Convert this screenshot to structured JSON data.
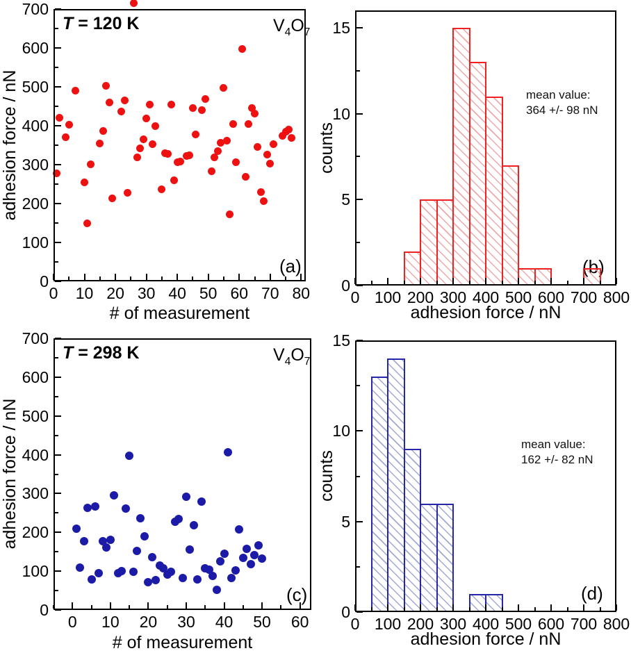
{
  "panels": {
    "a": {
      "letter": "(a)",
      "title_italic": "T",
      "title_rest": " = 120 K",
      "formula": [
        "V",
        "4",
        "O",
        "7"
      ],
      "xlabel": "# of measurement",
      "ylabel": "adhesion force / nN"
    },
    "b": {
      "letter": "(b)",
      "xlabel": "adhesion force / nN",
      "ylabel": "counts",
      "annotation_line1": "mean value:",
      "annotation_line2": "364 +/- 98 nN"
    },
    "c": {
      "letter": "(c)",
      "title_italic": "T",
      "title_rest": " = 298 K",
      "formula": [
        "V",
        "4",
        "O",
        "7"
      ],
      "xlabel": "# of measurement",
      "ylabel": "adhesion force / nN"
    },
    "d": {
      "letter": "(d)",
      "xlabel": "adhesion force / nN",
      "ylabel": "counts",
      "annotation_line1": "mean value:",
      "annotation_line2": "162 +/- 82 nN"
    }
  },
  "chart_data": [
    {
      "panel": "a",
      "type": "scatter",
      "title": "T = 120 K",
      "material": "V4O7",
      "xlabel": "# of measurement",
      "ylabel": "adhesion force / nN",
      "xlim": [
        0,
        81.5
      ],
      "ylim": [
        0,
        700
      ],
      "xticks": [
        0,
        10,
        20,
        30,
        40,
        50,
        60,
        70,
        80
      ],
      "x_minor_step": 5,
      "yticks": [
        0,
        100,
        200,
        300,
        400,
        500,
        600,
        700
      ],
      "y_minor_step": 50,
      "color": "#ee1111",
      "marker_size": 11,
      "points": [
        [
          1,
          277
        ],
        [
          2,
          420
        ],
        [
          4,
          370
        ],
        [
          5,
          402
        ],
        [
          7,
          490
        ],
        [
          10,
          255
        ],
        [
          11,
          150
        ],
        [
          12,
          301
        ],
        [
          15,
          355
        ],
        [
          16,
          386
        ],
        [
          17,
          503
        ],
        [
          18,
          460
        ],
        [
          19,
          214
        ],
        [
          22,
          436
        ],
        [
          23,
          466
        ],
        [
          24,
          228
        ],
        [
          26,
          716
        ],
        [
          27,
          318
        ],
        [
          28,
          342
        ],
        [
          29,
          365
        ],
        [
          30,
          418
        ],
        [
          31,
          455
        ],
        [
          32,
          352
        ],
        [
          33,
          400
        ],
        [
          35,
          236
        ],
        [
          36,
          330
        ],
        [
          37,
          328
        ],
        [
          38,
          455
        ],
        [
          39,
          259
        ],
        [
          40,
          307
        ],
        [
          41,
          308
        ],
        [
          43,
          322
        ],
        [
          44,
          325
        ],
        [
          45,
          446
        ],
        [
          46,
          378
        ],
        [
          48,
          440
        ],
        [
          49,
          468
        ],
        [
          51,
          283
        ],
        [
          52,
          318
        ],
        [
          53,
          335
        ],
        [
          54,
          356
        ],
        [
          55,
          498
        ],
        [
          56,
          362
        ],
        [
          57,
          173
        ],
        [
          58,
          405
        ],
        [
          59,
          307
        ],
        [
          61,
          598
        ],
        [
          62,
          268
        ],
        [
          63,
          405
        ],
        [
          64,
          446
        ],
        [
          65,
          432
        ],
        [
          66,
          345
        ],
        [
          67,
          230
        ],
        [
          68,
          207
        ],
        [
          69,
          326
        ],
        [
          70,
          303
        ],
        [
          71,
          352
        ],
        [
          74,
          375
        ],
        [
          75,
          385
        ],
        [
          76,
          390
        ],
        [
          77,
          368
        ]
      ]
    },
    {
      "panel": "b",
      "type": "histogram",
      "xlabel": "adhesion force / nN",
      "ylabel": "counts",
      "annotation": "mean value: 364 +/- 98 nN",
      "xlim": [
        0,
        800
      ],
      "ylim": [
        0,
        16
      ],
      "xticks": [
        0,
        100,
        200,
        300,
        400,
        500,
        600,
        700,
        800
      ],
      "x_minor_step": 50,
      "yticks": [
        0,
        5,
        10,
        15
      ],
      "y_minor_step": 2.5,
      "bin_width": 50,
      "edge_color": "#ee2222",
      "hatch_color": "#f0a8a8",
      "bins": [
        {
          "start": 150,
          "count": 2
        },
        {
          "start": 200,
          "count": 5
        },
        {
          "start": 250,
          "count": 5
        },
        {
          "start": 300,
          "count": 15
        },
        {
          "start": 350,
          "count": 13
        },
        {
          "start": 400,
          "count": 11
        },
        {
          "start": 450,
          "count": 7
        },
        {
          "start": 500,
          "count": 1
        },
        {
          "start": 550,
          "count": 1
        },
        {
          "start": 700,
          "count": 1
        }
      ]
    },
    {
      "panel": "c",
      "type": "scatter",
      "title": "T = 298 K",
      "material": "V4O7",
      "xlabel": "# of measurement",
      "ylabel": "adhesion force / nN",
      "xlim": [
        -5,
        63
      ],
      "ylim": [
        0,
        700
      ],
      "xticks": [
        0,
        10,
        20,
        30,
        40,
        50,
        60
      ],
      "x_minor_step": 5,
      "yticks": [
        0,
        100,
        200,
        300,
        400,
        500,
        600,
        700
      ],
      "y_minor_step": 50,
      "color": "#1b1ba8",
      "marker_size": 12,
      "points": [
        [
          1,
          210
        ],
        [
          2,
          110
        ],
        [
          3,
          178
        ],
        [
          4,
          263
        ],
        [
          5,
          78
        ],
        [
          6,
          266
        ],
        [
          7,
          95
        ],
        [
          8,
          177
        ],
        [
          9,
          162
        ],
        [
          10,
          180
        ],
        [
          11,
          295
        ],
        [
          12,
          95
        ],
        [
          13,
          101
        ],
        [
          14,
          262
        ],
        [
          15,
          397
        ],
        [
          16,
          98
        ],
        [
          17,
          152
        ],
        [
          18,
          237
        ],
        [
          19,
          190
        ],
        [
          20,
          72
        ],
        [
          21,
          136
        ],
        [
          22,
          77
        ],
        [
          23,
          114
        ],
        [
          24,
          108
        ],
        [
          25,
          92
        ],
        [
          26,
          99
        ],
        [
          27,
          228
        ],
        [
          28,
          235
        ],
        [
          29,
          82
        ],
        [
          30,
          292
        ],
        [
          31,
          155
        ],
        [
          32,
          218
        ],
        [
          33,
          78
        ],
        [
          34,
          280
        ],
        [
          35,
          107
        ],
        [
          36,
          103
        ],
        [
          37,
          88
        ],
        [
          38,
          52
        ],
        [
          39,
          125
        ],
        [
          40,
          145
        ],
        [
          41,
          407
        ],
        [
          42,
          83
        ],
        [
          43,
          102
        ],
        [
          44,
          207
        ],
        [
          45,
          134
        ],
        [
          46,
          158
        ],
        [
          47,
          118
        ],
        [
          48,
          142
        ],
        [
          49,
          167
        ],
        [
          50,
          133
        ]
      ]
    },
    {
      "panel": "d",
      "type": "histogram",
      "xlabel": "adhesion force / nN",
      "ylabel": "counts",
      "annotation": "mean value: 162 +/- 82 nN",
      "xlim": [
        0,
        800
      ],
      "ylim": [
        0,
        15
      ],
      "xticks": [
        0,
        100,
        200,
        300,
        400,
        500,
        600,
        700,
        800
      ],
      "x_minor_step": 50,
      "yticks": [
        0,
        5,
        10,
        15
      ],
      "y_minor_step": 2.5,
      "bin_width": 50,
      "edge_color": "#2626aa",
      "hatch_color": "#a0a8d4",
      "bins": [
        {
          "start": 50,
          "count": 13
        },
        {
          "start": 100,
          "count": 14
        },
        {
          "start": 150,
          "count": 9
        },
        {
          "start": 200,
          "count": 6
        },
        {
          "start": 250,
          "count": 6
        },
        {
          "start": 350,
          "count": 1
        },
        {
          "start": 400,
          "count": 1
        }
      ]
    }
  ]
}
